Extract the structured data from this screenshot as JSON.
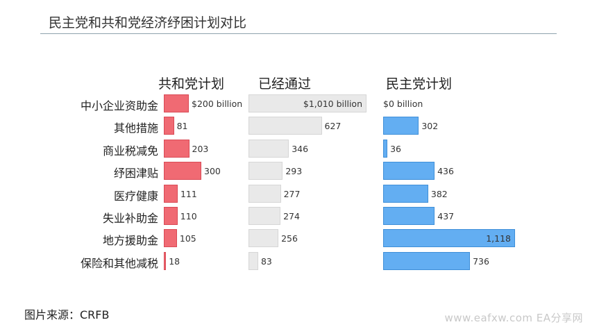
{
  "title": "民主党和共和党经济纾困计划对比",
  "source": "图片来源：CRFB",
  "watermark": "www.eafxw.com EA分享网",
  "chart_data": {
    "type": "bar",
    "orientation": "horizontal",
    "title": "民主党和共和党经济纾困计划对比",
    "categories": [
      "中小企业资助金",
      "其他措施",
      "商业税减免",
      "纾困津贴",
      "医疗健康",
      "失业补助金",
      "地方援助金",
      "保险和其他减税"
    ],
    "series": [
      {
        "name": "共和党计划",
        "values": [
          200,
          81,
          203,
          300,
          111,
          110,
          105,
          18
        ],
        "labels": [
          "$200 billion",
          "81",
          "203",
          "300",
          "111",
          "110",
          "105",
          "18"
        ],
        "color": "#f06a73"
      },
      {
        "name": "已经通过",
        "values": [
          1010,
          627,
          346,
          293,
          277,
          274,
          256,
          83
        ],
        "labels": [
          "$1,010 billion",
          "627",
          "346",
          "293",
          "277",
          "274",
          "256",
          "83"
        ],
        "color": "#e9e9e9"
      },
      {
        "name": "民主党计划",
        "values": [
          0,
          302,
          36,
          436,
          382,
          437,
          1118,
          736
        ],
        "labels": [
          "$0 billion",
          "302",
          "36",
          "436",
          "382",
          "437",
          "1,118",
          "736"
        ],
        "color": "#63aef2"
      }
    ],
    "grid": false,
    "legend": "none"
  }
}
